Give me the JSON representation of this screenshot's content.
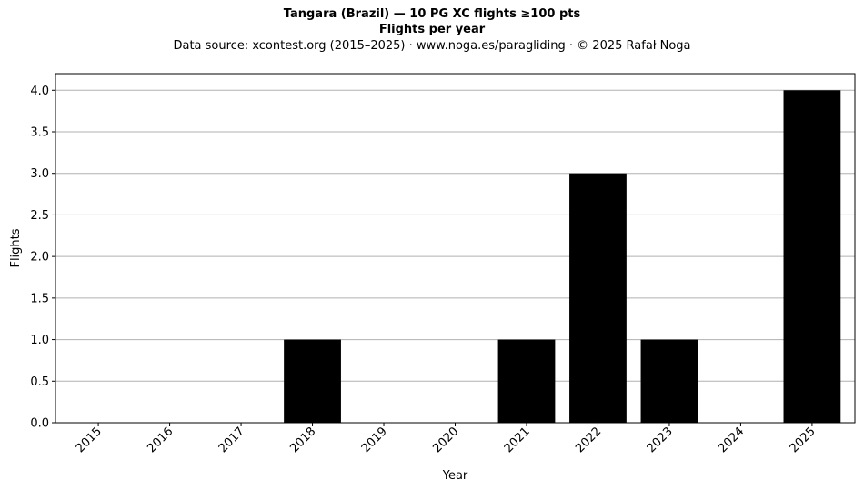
{
  "chart_data": {
    "type": "bar",
    "title": "Tangara (Brazil)  —  10 PG XC flights ≥100 pts",
    "subtitle": "Flights per year",
    "source": "Data source: xcontest.org (2015–2025)  ·  www.noga.es/paragliding  ·  © 2025 Rafał Noga",
    "xlabel": "Year",
    "ylabel": "Flights",
    "categories": [
      "2015",
      "2016",
      "2017",
      "2018",
      "2019",
      "2020",
      "2021",
      "2022",
      "2023",
      "2024",
      "2025"
    ],
    "values": [
      0,
      0,
      0,
      1,
      0,
      0,
      1,
      3,
      1,
      0,
      4
    ],
    "ylim": [
      0,
      4.2
    ],
    "yticks": [
      "0.0",
      "0.5",
      "1.0",
      "1.5",
      "2.0",
      "2.5",
      "3.0",
      "3.5",
      "4.0"
    ],
    "grid": "horizontal",
    "bar_color": "#000000",
    "grid_color": "#b0b0b0"
  }
}
